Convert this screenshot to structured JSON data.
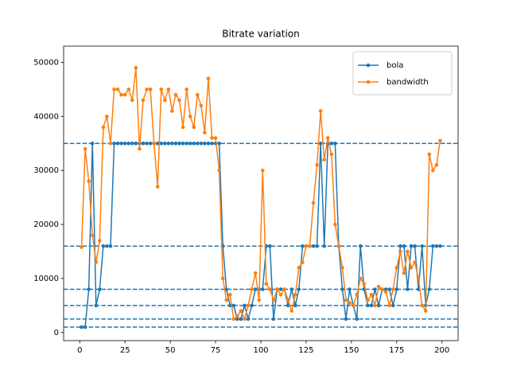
{
  "chart_data": {
    "type": "line",
    "title": "Bitrate variation",
    "x": [
      1,
      3,
      5,
      7,
      9,
      11,
      13,
      15,
      17,
      19,
      21,
      23,
      25,
      27,
      29,
      31,
      33,
      35,
      37,
      39,
      41,
      43,
      45,
      47,
      49,
      51,
      53,
      55,
      57,
      59,
      61,
      63,
      65,
      67,
      69,
      71,
      73,
      75,
      77,
      79,
      81,
      83,
      85,
      87,
      89,
      91,
      93,
      95,
      97,
      99,
      101,
      103,
      105,
      107,
      109,
      111,
      113,
      115,
      117,
      119,
      121,
      123,
      125,
      127,
      129,
      131,
      133,
      135,
      137,
      139,
      141,
      143,
      145,
      147,
      149,
      151,
      153,
      155,
      157,
      159,
      161,
      163,
      165,
      167,
      169,
      171,
      173,
      175,
      177,
      179,
      181,
      183,
      185,
      187,
      189,
      191,
      193,
      195,
      197,
      199
    ],
    "series": [
      {
        "name": "bola",
        "color": "#1f77b4",
        "values": [
          1000,
          1000,
          8000,
          35000,
          5000,
          8000,
          16000,
          16000,
          16000,
          35000,
          35000,
          35000,
          35000,
          35000,
          35000,
          35000,
          35000,
          35000,
          35000,
          35000,
          35000,
          35000,
          35000,
          35000,
          35000,
          35000,
          35000,
          35000,
          35000,
          35000,
          35000,
          35000,
          35000,
          35000,
          35000,
          35000,
          35000,
          35000,
          35000,
          16000,
          8000,
          5000,
          5000,
          2500,
          2500,
          5000,
          2500,
          5000,
          8000,
          8000,
          8000,
          16000,
          16000,
          2500,
          8000,
          8000,
          8000,
          5000,
          8000,
          5000,
          8000,
          16000,
          16000,
          16000,
          16000,
          16000,
          35000,
          16000,
          35000,
          35000,
          35000,
          16000,
          8000,
          2500,
          8000,
          5000,
          2500,
          16000,
          8000,
          5000,
          5000,
          8000,
          5000,
          8000,
          8000,
          8000,
          5000,
          8000,
          16000,
          16000,
          8000,
          16000,
          16000,
          8000,
          16000,
          5000,
          8000,
          16000,
          16000,
          16000
        ]
      },
      {
        "name": "bandwidth",
        "color": "#ff7f0e",
        "values": [
          15800,
          34000,
          28000,
          18000,
          13000,
          17000,
          38000,
          40000,
          35000,
          45000,
          45000,
          44000,
          44000,
          45000,
          43000,
          49000,
          34000,
          43000,
          45000,
          45000,
          35000,
          27000,
          45000,
          43000,
          45000,
          41000,
          44000,
          43000,
          38000,
          45000,
          40000,
          38000,
          44000,
          42000,
          37000,
          47000,
          36000,
          36000,
          30000,
          10000,
          6000,
          7000,
          2500,
          3000,
          4000,
          2500,
          5000,
          8000,
          11000,
          6000,
          30000,
          9000,
          8000,
          6000,
          8000,
          7000,
          8000,
          6000,
          4000,
          7000,
          12000,
          13000,
          16000,
          16000,
          24000,
          31000,
          41000,
          32000,
          36000,
          33000,
          20000,
          16000,
          12000,
          6000,
          5500,
          5000,
          7000,
          10000,
          9000,
          6000,
          7000,
          5000,
          8500,
          8000,
          7500,
          5000,
          8000,
          12000,
          15000,
          11000,
          15000,
          12000,
          13000,
          10000,
          5000,
          4000,
          33000,
          30000,
          31000,
          35500
        ]
      }
    ],
    "hlines": {
      "values": [
        1000,
        2500,
        5000,
        8000,
        16000,
        35000
      ],
      "color": "#1f77b4"
    },
    "xlim": [
      -8.9,
      208.9
    ],
    "ylim": [
      -1500,
      53000
    ],
    "xticks": [
      0,
      25,
      50,
      75,
      100,
      125,
      150,
      175,
      200
    ],
    "yticks": [
      0,
      10000,
      20000,
      30000,
      40000,
      50000
    ],
    "legend": "upper right"
  }
}
